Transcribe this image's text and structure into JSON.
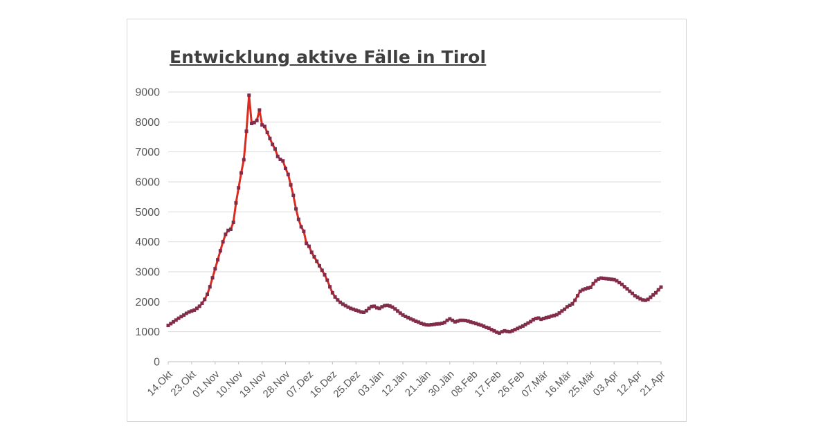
{
  "page": {
    "background": "#ffffff"
  },
  "card": {
    "background": "#ffffff",
    "border_color": "#d6d6d6"
  },
  "chart_data": {
    "type": "line",
    "title": "Entwicklung aktive Fälle in Tirol",
    "title_color": "#3f3f3f",
    "legend": "none",
    "grid": "horizontal",
    "grid_color": "#d9d9d9",
    "axis_color": "#bfbfbf",
    "tick_label_color": "#595959",
    "ylim": [
      0,
      9000
    ],
    "y_ticks": [
      0,
      1000,
      2000,
      3000,
      4000,
      5000,
      6000,
      7000,
      8000,
      9000
    ],
    "x_tick_step_days": 9,
    "x_tick_labels": [
      "14.Okt",
      "23.Okt",
      "01.Nov",
      "10.Nov",
      "19.Nov",
      "28.Nov",
      "07.Dez",
      "16.Dez",
      "25.Dez",
      "03.Jän",
      "12.Jän",
      "21.Jän",
      "30.Jän",
      "08.Feb",
      "17.Feb",
      "26.Feb",
      "07.Mär",
      "16.Mär",
      "25.Mär",
      "03.Apr",
      "12.Apr",
      "21.Apr"
    ],
    "series": [
      {
        "name": "aktive Fälle Tirol",
        "line_color": "#db2a1e",
        "marker_color": "#822c4b",
        "marker_shape": "square",
        "start_date_label": "14.Okt",
        "end_date_label": "21.Apr",
        "values": [
          1210,
          1270,
          1330,
          1390,
          1450,
          1505,
          1555,
          1615,
          1660,
          1690,
          1720,
          1780,
          1850,
          1950,
          2080,
          2250,
          2500,
          2800,
          3100,
          3400,
          3700,
          4000,
          4250,
          4380,
          4420,
          4650,
          5300,
          5800,
          6300,
          6740,
          7690,
          8890,
          7950,
          7980,
          8050,
          8400,
          7900,
          7850,
          7650,
          7450,
          7250,
          7100,
          6850,
          6750,
          6700,
          6450,
          6250,
          5900,
          5550,
          5100,
          4750,
          4500,
          4350,
          3950,
          3850,
          3650,
          3500,
          3350,
          3200,
          3050,
          2900,
          2720,
          2500,
          2300,
          2160,
          2060,
          1980,
          1920,
          1870,
          1820,
          1780,
          1750,
          1720,
          1690,
          1660,
          1650,
          1700,
          1780,
          1840,
          1850,
          1800,
          1780,
          1830,
          1870,
          1880,
          1860,
          1820,
          1760,
          1690,
          1620,
          1560,
          1510,
          1470,
          1430,
          1390,
          1350,
          1320,
          1280,
          1250,
          1230,
          1225,
          1235,
          1245,
          1260,
          1265,
          1280,
          1310,
          1380,
          1430,
          1380,
          1330,
          1355,
          1380,
          1380,
          1375,
          1355,
          1325,
          1300,
          1275,
          1245,
          1220,
          1185,
          1145,
          1120,
          1070,
          1030,
          985,
          955,
          1000,
          1030,
          1010,
          1000,
          1030,
          1070,
          1110,
          1150,
          1190,
          1240,
          1290,
          1340,
          1400,
          1440,
          1455,
          1415,
          1440,
          1470,
          1490,
          1520,
          1540,
          1570,
          1625,
          1690,
          1750,
          1830,
          1880,
          1930,
          2050,
          2200,
          2350,
          2400,
          2430,
          2460,
          2480,
          2600,
          2700,
          2760,
          2790,
          2780,
          2770,
          2760,
          2750,
          2740,
          2700,
          2640,
          2580,
          2500,
          2430,
          2350,
          2280,
          2200,
          2150,
          2100,
          2060,
          2050,
          2080,
          2150,
          2230,
          2300,
          2400,
          2490
        ]
      }
    ]
  }
}
